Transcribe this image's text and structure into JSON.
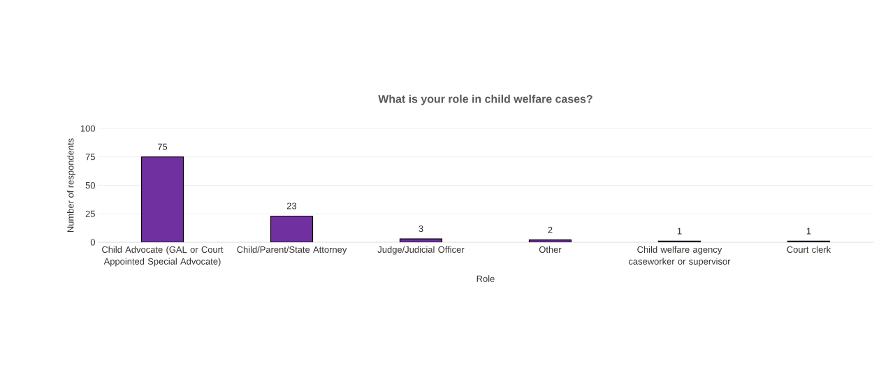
{
  "chart_data": {
    "type": "bar",
    "title": "What is your role in child welfare cases?",
    "xlabel": "Role",
    "ylabel": "Number of respondents",
    "categories": [
      "Child Advocate (GAL or Court Appointed Special Advocate)",
      "Child/Parent/State Attorney",
      "Judge/Judicial Officer",
      "Other",
      "Child welfare agency caseworker or supervisor",
      "Court clerk"
    ],
    "values": [
      75,
      23,
      3,
      2,
      1,
      1
    ],
    "color": "#7030a0",
    "ylim": [
      0,
      100
    ],
    "yticks": [
      0,
      25,
      50,
      75,
      100
    ],
    "grid": "y",
    "data_labels": true
  }
}
